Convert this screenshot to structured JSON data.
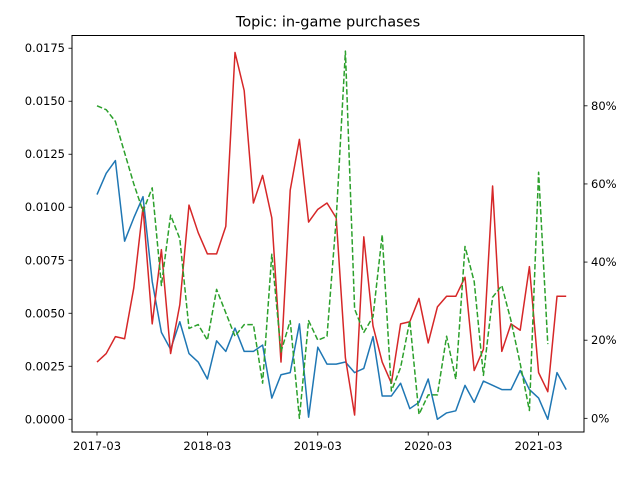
{
  "chart_data": {
    "type": "line",
    "title": "Topic: in-game purchases",
    "xlabel": "",
    "ylabel": "",
    "x_start": "2017-03",
    "x_ticks": [
      "2017-03",
      "2018-03",
      "2019-03",
      "2020-03",
      "2021-03"
    ],
    "ylim_left": [
      -0.0006,
      0.0181
    ],
    "y_ticks_left": [
      "0.0000",
      "0.0025",
      "0.0050",
      "0.0075",
      "0.0100",
      "0.0125",
      "0.0150",
      "0.0175"
    ],
    "ylim_right": [
      -3.5,
      98
    ],
    "y_ticks_right": [
      "0%",
      "20%",
      "40%",
      "60%",
      "80%"
    ],
    "grid": false,
    "legend": "none",
    "series": [
      {
        "axis": "left",
        "color": "#1f77b4",
        "style": "solid",
        "values": [
          0.0106,
          0.0116,
          0.0122,
          0.0084,
          0.0095,
          0.0105,
          0.0065,
          0.0041,
          0.0033,
          0.0046,
          0.0031,
          0.0027,
          0.0019,
          0.0037,
          0.0032,
          0.0043,
          0.0032,
          0.0032,
          0.0035,
          0.001,
          0.0021,
          0.0022,
          0.0045,
          0.0001,
          0.0034,
          0.0026,
          0.0026,
          0.0027,
          0.0022,
          0.0024,
          0.0039,
          0.0011,
          0.0011,
          0.0017,
          0.0005,
          0.0008,
          0.0019,
          0.0,
          0.0003,
          0.0004,
          0.0016,
          0.0008,
          0.0018,
          0.0016,
          0.0014,
          0.0014,
          0.0023,
          0.0014,
          0.001,
          0.0,
          0.0022,
          0.0014
        ]
      },
      {
        "axis": "left",
        "color": "#d62728",
        "style": "solid",
        "values": [
          0.0027,
          0.0031,
          0.0039,
          0.0038,
          0.0062,
          0.01,
          0.0045,
          0.008,
          0.0031,
          0.0054,
          0.0101,
          0.0088,
          0.0078,
          0.0078,
          0.0091,
          0.0173,
          0.0155,
          0.0102,
          0.0115,
          0.0095,
          0.0027,
          0.0108,
          0.0132,
          0.0093,
          0.0099,
          0.0102,
          0.0095,
          0.0029,
          0.0002,
          0.0086,
          0.0044,
          0.0027,
          0.0017,
          0.0045,
          0.0046,
          0.0057,
          0.0036,
          0.0053,
          0.0058,
          0.0058,
          0.0067,
          0.0023,
          0.0033,
          0.011,
          0.0032,
          0.0045,
          0.0042,
          0.0072,
          0.0022,
          0.0013,
          0.0058,
          0.0058
        ]
      },
      {
        "axis": "right",
        "color": "#2ca02c",
        "style": "dashed",
        "values": [
          80,
          79,
          76,
          68,
          60,
          53,
          59,
          34,
          52,
          46,
          23,
          24,
          20,
          33,
          27,
          21,
          24,
          24,
          9,
          42,
          17,
          25,
          0,
          25,
          20,
          21,
          51,
          94,
          28,
          22,
          26,
          47,
          7,
          13,
          25,
          1,
          6,
          6,
          21,
          10,
          44,
          35,
          11,
          31,
          34,
          25,
          14,
          2,
          63,
          19
        ]
      }
    ]
  }
}
